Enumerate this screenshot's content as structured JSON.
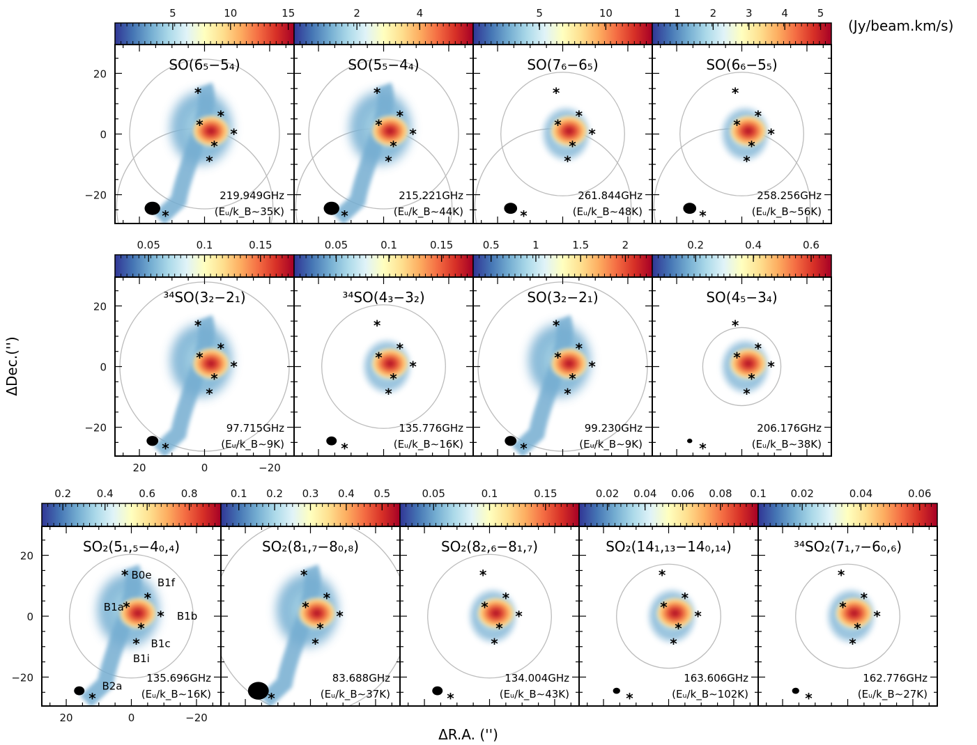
{
  "chart_data": {
    "type": "heatmap",
    "title": "",
    "xlabel": "ΔR.A. ('')",
    "ylabel": "ΔDec.('')",
    "unit_label": "(Jy/beam.km/s)",
    "xlim": [
      27.5,
      -27.5
    ],
    "ylim": [
      -29.5,
      29.5
    ],
    "x_ticks": [
      20,
      0,
      -20
    ],
    "y_ticks": [
      20,
      0,
      -20
    ],
    "colormap": [
      "#313695",
      "#4575b4",
      "#74add1",
      "#abd9e9",
      "#e0f3f8",
      "#ffffbf",
      "#fee090",
      "#fdae61",
      "#f46d43",
      "#d73027",
      "#a50026"
    ],
    "sources": [
      {
        "name": "B0e",
        "x": 2,
        "y": 13.5
      },
      {
        "name": "B1f",
        "x": -5,
        "y": 6
      },
      {
        "name": "B1a",
        "x": 1.5,
        "y": 3
      },
      {
        "name": "B1b",
        "x": -9,
        "y": 0
      },
      {
        "name": "B1c",
        "x": -3,
        "y": -4
      },
      {
        "name": "B1i",
        "x": -1.5,
        "y": -9
      },
      {
        "name": "B2a",
        "x": 12,
        "y": -27
      }
    ],
    "panels": [
      {
        "line_main": "SO",
        "line_sub": "(6₅−5₄)",
        "freq": "219.949GHz",
        "eu": "(Eᵤ/k_B∼35K)",
        "cbar_ticks": [
          "5",
          "10",
          "15"
        ],
        "cbar_vals": [
          5,
          10,
          15
        ],
        "cbar_range": [
          0,
          15.5
        ],
        "pb_radius": 23,
        "big_blob": true,
        "beam_size": 2.4
      },
      {
        "line_main": "SO",
        "line_sub": "(5₅−4₄)",
        "freq": "215.221GHz",
        "eu": "(Eᵤ/k_B∼44K)",
        "cbar_ticks": [
          "2",
          "4"
        ],
        "cbar_vals": [
          2,
          4
        ],
        "cbar_range": [
          0,
          5.7
        ],
        "pb_radius": 23,
        "big_blob": true,
        "beam_size": 2.4
      },
      {
        "line_main": "SO",
        "line_sub": "(7₆−6₅)",
        "freq": "261.844GHz",
        "eu": "(Eᵤ/k_B∼48K)",
        "cbar_ticks": [
          "5",
          "10"
        ],
        "cbar_vals": [
          5,
          10
        ],
        "cbar_range": [
          0,
          13.5
        ],
        "pb_radius": 19,
        "big_blob": false,
        "beam_size": 2
      },
      {
        "line_main": "SO",
        "line_sub": "(6₆−5₅)",
        "freq": "258.256GHz",
        "eu": "(Eᵤ/k_B∼56K)",
        "cbar_ticks": [
          "1",
          "2",
          "3",
          "4",
          "5"
        ],
        "cbar_vals": [
          1,
          2,
          3,
          4,
          5
        ],
        "cbar_range": [
          0.3,
          5.3
        ],
        "pb_radius": 19,
        "big_blob": false,
        "beam_size": 2
      },
      {
        "line_main": "³⁴SO",
        "line_sub": "(3₂−2₁)",
        "freq": "97.715GHz",
        "eu": "(Eᵤ/k_B∼9K)",
        "cbar_ticks": [
          "0.05",
          "0.1",
          "0.15"
        ],
        "cbar_vals": [
          0.05,
          0.1,
          0.15
        ],
        "cbar_range": [
          0.02,
          0.18
        ],
        "pb_radius": 26,
        "big_blob": true,
        "beam_size": 1.8
      },
      {
        "line_main": "³⁴SO",
        "line_sub": "(4₃−3₂)",
        "freq": "135.776GHz",
        "eu": "(Eᵤ/k_B∼16K)",
        "cbar_ticks": [
          "0.05",
          "0.1",
          "0.15"
        ],
        "cbar_vals": [
          0.05,
          0.1,
          0.15
        ],
        "cbar_range": [
          0.01,
          0.18
        ],
        "pb_radius": 19,
        "big_blob": false,
        "beam_size": 1.6
      },
      {
        "line_main": "SO",
        "line_sub": "(3₂−2₁)",
        "freq": "99.230GHz",
        "eu": "(Eᵤ/k_B∼9K)",
        "cbar_ticks": [
          "0.5",
          "1",
          "1.5",
          "2"
        ],
        "cbar_vals": [
          0.5,
          1,
          1.5,
          2
        ],
        "cbar_range": [
          0.3,
          2.3
        ],
        "pb_radius": 26,
        "big_blob": true,
        "beam_size": 1.8
      },
      {
        "line_main": "SO",
        "line_sub": "(4₅−3₄)",
        "freq": "206.176GHz",
        "eu": "(Eᵤ/k_B∼38K)",
        "cbar_ticks": [
          "0.2",
          "0.4",
          "0.6"
        ],
        "cbar_vals": [
          0.2,
          0.4,
          0.6
        ],
        "cbar_range": [
          0.05,
          0.67
        ],
        "pb_radius": 12,
        "big_blob": false,
        "beam_size": 0.8
      },
      {
        "line_main": "SO₂",
        "line_sub": "(5₁,₅−4₀,₄)",
        "freq": "135.696GHz",
        "eu": "(Eᵤ/k_B∼16K)",
        "cbar_ticks": [
          "0.2",
          "0.4",
          "0.6",
          "0.8"
        ],
        "cbar_vals": [
          0.2,
          0.4,
          0.6,
          0.8
        ],
        "cbar_range": [
          0.1,
          0.95
        ],
        "pb_radius": 19,
        "big_blob": true,
        "beam_size": 1.6
      },
      {
        "line_main": "SO₂",
        "line_sub": "(8₁,₇−8₀,₈)",
        "freq": "83.688GHz",
        "eu": "(Eᵤ/k_B∼37K)",
        "cbar_ticks": [
          "0.1",
          "0.2",
          "0.3",
          "0.4",
          "0.5"
        ],
        "cbar_vals": [
          0.1,
          0.2,
          0.3,
          0.4,
          0.5
        ],
        "cbar_range": [
          0.05,
          0.55
        ],
        "pb_radius": 30,
        "big_blob": true,
        "beam_size": 3.2
      },
      {
        "line_main": "SO₂",
        "line_sub": "(8₂,₆−8₁,₇)",
        "freq": "134.004GHz",
        "eu": "(Eᵤ/k_B∼43K)",
        "cbar_ticks": [
          "0.05",
          "0.1",
          "0.15"
        ],
        "cbar_vals": [
          0.05,
          0.1,
          0.15
        ],
        "cbar_range": [
          0.02,
          0.18
        ],
        "pb_radius": 19,
        "big_blob": false,
        "beam_size": 1.6
      },
      {
        "line_main": "SO₂",
        "line_sub": "(14₁,₁₃−14₀,₁₄)",
        "freq": "163.606GHz",
        "eu": "(Eᵤ/k_B∼102K)",
        "cbar_ticks": [
          "0.02",
          "0.04",
          "0.06",
          "0.08",
          "0.1"
        ],
        "cbar_vals": [
          0.02,
          0.04,
          0.06,
          0.08,
          0.1
        ],
        "cbar_range": [
          0.005,
          0.1
        ],
        "pb_radius": 16,
        "big_blob": false,
        "beam_size": 1.1
      },
      {
        "line_main": "³⁴SO₂",
        "line_sub": "(7₁,₇−6₀,₆)",
        "freq": "162.776GHz",
        "eu": "(Eᵤ/k_B∼27K)",
        "cbar_ticks": [
          "0.02",
          "0.04",
          "0.06"
        ],
        "cbar_vals": [
          0.02,
          0.04,
          0.06
        ],
        "cbar_range": [
          0.005,
          0.066
        ],
        "pb_radius": 16,
        "big_blob": false,
        "beam_size": 1.1
      }
    ]
  }
}
